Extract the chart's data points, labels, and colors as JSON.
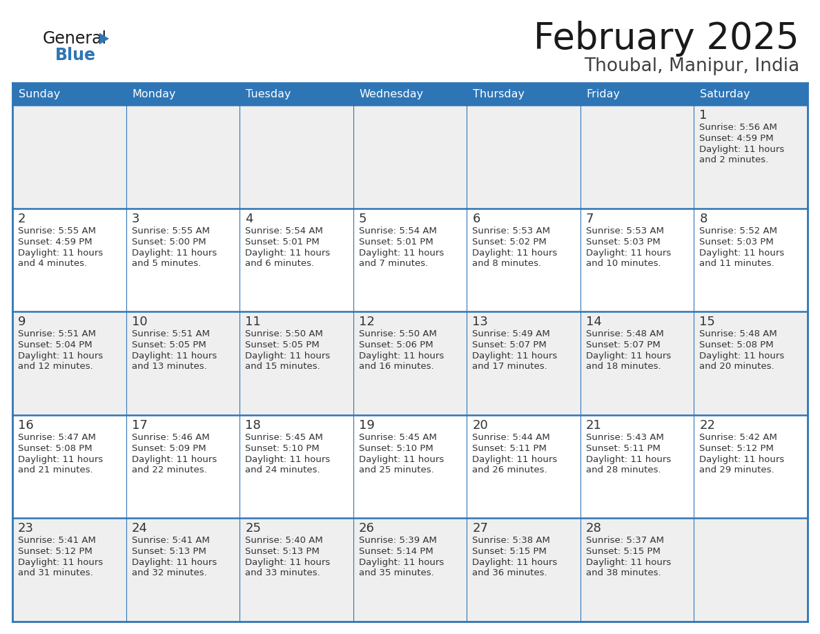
{
  "title": "February 2025",
  "subtitle": "Thoubal, Manipur, India",
  "header_bg": "#2E75B6",
  "header_text": "#FFFFFF",
  "cell_bg_odd": "#EFEFEF",
  "cell_bg_even": "#FFFFFF",
  "border_color": "#2E75B6",
  "text_color": "#333333",
  "day_names": [
    "Sunday",
    "Monday",
    "Tuesday",
    "Wednesday",
    "Thursday",
    "Friday",
    "Saturday"
  ],
  "weeks": [
    [
      {
        "day": "",
        "sunrise": "",
        "sunset": "",
        "daylight_h": "",
        "daylight_m": ""
      },
      {
        "day": "",
        "sunrise": "",
        "sunset": "",
        "daylight_h": "",
        "daylight_m": ""
      },
      {
        "day": "",
        "sunrise": "",
        "sunset": "",
        "daylight_h": "",
        "daylight_m": ""
      },
      {
        "day": "",
        "sunrise": "",
        "sunset": "",
        "daylight_h": "",
        "daylight_m": ""
      },
      {
        "day": "",
        "sunrise": "",
        "sunset": "",
        "daylight_h": "",
        "daylight_m": ""
      },
      {
        "day": "",
        "sunrise": "",
        "sunset": "",
        "daylight_h": "",
        "daylight_m": ""
      },
      {
        "day": "1",
        "sunrise": "5:56 AM",
        "sunset": "4:59 PM",
        "daylight_h": "11 hours",
        "daylight_m": "and 2 minutes."
      }
    ],
    [
      {
        "day": "2",
        "sunrise": "5:55 AM",
        "sunset": "4:59 PM",
        "daylight_h": "11 hours",
        "daylight_m": "and 4 minutes."
      },
      {
        "day": "3",
        "sunrise": "5:55 AM",
        "sunset": "5:00 PM",
        "daylight_h": "11 hours",
        "daylight_m": "and 5 minutes."
      },
      {
        "day": "4",
        "sunrise": "5:54 AM",
        "sunset": "5:01 PM",
        "daylight_h": "11 hours",
        "daylight_m": "and 6 minutes."
      },
      {
        "day": "5",
        "sunrise": "5:54 AM",
        "sunset": "5:01 PM",
        "daylight_h": "11 hours",
        "daylight_m": "and 7 minutes."
      },
      {
        "day": "6",
        "sunrise": "5:53 AM",
        "sunset": "5:02 PM",
        "daylight_h": "11 hours",
        "daylight_m": "and 8 minutes."
      },
      {
        "day": "7",
        "sunrise": "5:53 AM",
        "sunset": "5:03 PM",
        "daylight_h": "11 hours",
        "daylight_m": "and 10 minutes."
      },
      {
        "day": "8",
        "sunrise": "5:52 AM",
        "sunset": "5:03 PM",
        "daylight_h": "11 hours",
        "daylight_m": "and 11 minutes."
      }
    ],
    [
      {
        "day": "9",
        "sunrise": "5:51 AM",
        "sunset": "5:04 PM",
        "daylight_h": "11 hours",
        "daylight_m": "and 12 minutes."
      },
      {
        "day": "10",
        "sunrise": "5:51 AM",
        "sunset": "5:05 PM",
        "daylight_h": "11 hours",
        "daylight_m": "and 13 minutes."
      },
      {
        "day": "11",
        "sunrise": "5:50 AM",
        "sunset": "5:05 PM",
        "daylight_h": "11 hours",
        "daylight_m": "and 15 minutes."
      },
      {
        "day": "12",
        "sunrise": "5:50 AM",
        "sunset": "5:06 PM",
        "daylight_h": "11 hours",
        "daylight_m": "and 16 minutes."
      },
      {
        "day": "13",
        "sunrise": "5:49 AM",
        "sunset": "5:07 PM",
        "daylight_h": "11 hours",
        "daylight_m": "and 17 minutes."
      },
      {
        "day": "14",
        "sunrise": "5:48 AM",
        "sunset": "5:07 PM",
        "daylight_h": "11 hours",
        "daylight_m": "and 18 minutes."
      },
      {
        "day": "15",
        "sunrise": "5:48 AM",
        "sunset": "5:08 PM",
        "daylight_h": "11 hours",
        "daylight_m": "and 20 minutes."
      }
    ],
    [
      {
        "day": "16",
        "sunrise": "5:47 AM",
        "sunset": "5:08 PM",
        "daylight_h": "11 hours",
        "daylight_m": "and 21 minutes."
      },
      {
        "day": "17",
        "sunrise": "5:46 AM",
        "sunset": "5:09 PM",
        "daylight_h": "11 hours",
        "daylight_m": "and 22 minutes."
      },
      {
        "day": "18",
        "sunrise": "5:45 AM",
        "sunset": "5:10 PM",
        "daylight_h": "11 hours",
        "daylight_m": "and 24 minutes."
      },
      {
        "day": "19",
        "sunrise": "5:45 AM",
        "sunset": "5:10 PM",
        "daylight_h": "11 hours",
        "daylight_m": "and 25 minutes."
      },
      {
        "day": "20",
        "sunrise": "5:44 AM",
        "sunset": "5:11 PM",
        "daylight_h": "11 hours",
        "daylight_m": "and 26 minutes."
      },
      {
        "day": "21",
        "sunrise": "5:43 AM",
        "sunset": "5:11 PM",
        "daylight_h": "11 hours",
        "daylight_m": "and 28 minutes."
      },
      {
        "day": "22",
        "sunrise": "5:42 AM",
        "sunset": "5:12 PM",
        "daylight_h": "11 hours",
        "daylight_m": "and 29 minutes."
      }
    ],
    [
      {
        "day": "23",
        "sunrise": "5:41 AM",
        "sunset": "5:12 PM",
        "daylight_h": "11 hours",
        "daylight_m": "and 31 minutes."
      },
      {
        "day": "24",
        "sunrise": "5:41 AM",
        "sunset": "5:13 PM",
        "daylight_h": "11 hours",
        "daylight_m": "and 32 minutes."
      },
      {
        "day": "25",
        "sunrise": "5:40 AM",
        "sunset": "5:13 PM",
        "daylight_h": "11 hours",
        "daylight_m": "and 33 minutes."
      },
      {
        "day": "26",
        "sunrise": "5:39 AM",
        "sunset": "5:14 PM",
        "daylight_h": "11 hours",
        "daylight_m": "and 35 minutes."
      },
      {
        "day": "27",
        "sunrise": "5:38 AM",
        "sunset": "5:15 PM",
        "daylight_h": "11 hours",
        "daylight_m": "and 36 minutes."
      },
      {
        "day": "28",
        "sunrise": "5:37 AM",
        "sunset": "5:15 PM",
        "daylight_h": "11 hours",
        "daylight_m": "and 38 minutes."
      },
      {
        "day": "",
        "sunrise": "",
        "sunset": "",
        "daylight_h": "",
        "daylight_m": ""
      }
    ]
  ]
}
